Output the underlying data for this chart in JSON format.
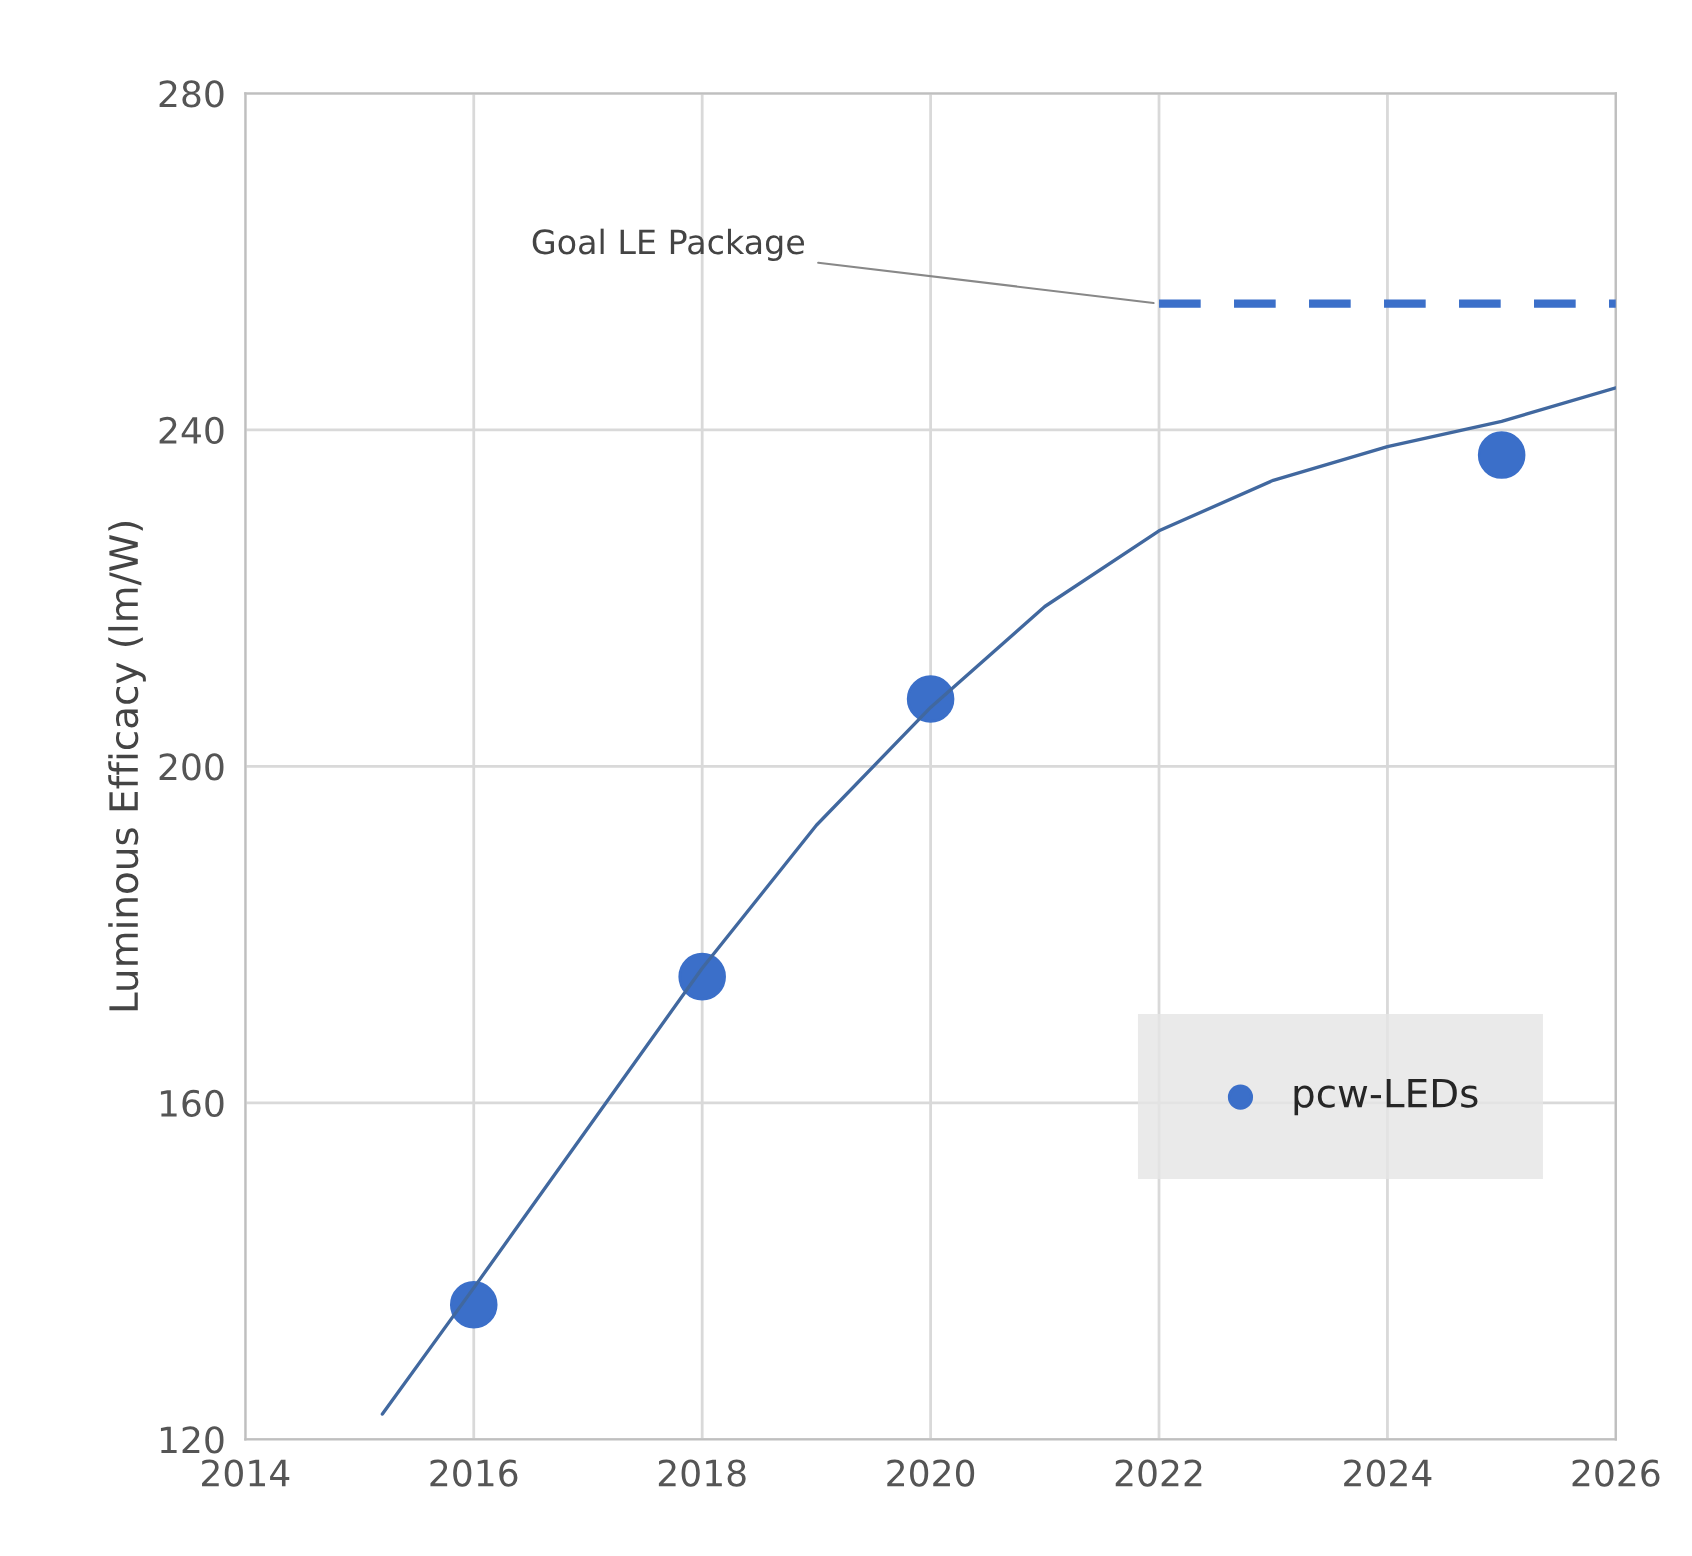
{
  "chart_data": {
    "type": "scatter",
    "ylabel": "Luminous Efficacy (lm/W)",
    "xlim": [
      2014,
      2026
    ],
    "xticks": [
      2014,
      2016,
      2018,
      2020,
      2022,
      2024,
      2026
    ],
    "ylim": [
      120,
      280
    ],
    "yticks": [
      120,
      160,
      200,
      240,
      280
    ],
    "grid": true,
    "legend": "bottom right",
    "annotations": [
      {
        "text": "Goal LE Package",
        "x": 2022,
        "y": 255
      }
    ],
    "series": [
      {
        "name": "pcw-LEDs",
        "marker": "circle",
        "color": "#3b6fc9",
        "x": [
          2016,
          2018,
          2020,
          2025
        ],
        "values": [
          136,
          175,
          208,
          237
        ]
      },
      {
        "type": "line",
        "marker": "none",
        "line_style": "solid",
        "color": "#41689f",
        "x": [
          2015.2,
          2016,
          2017,
          2018,
          2019,
          2020,
          2021,
          2022,
          2023,
          2024,
          2025,
          2026
        ],
        "values": [
          123,
          138,
          157,
          176,
          193,
          207,
          219,
          228,
          234,
          238,
          241,
          245
        ]
      },
      {
        "type": "line",
        "marker": "none",
        "line_style": "dashed",
        "color": "#3b6fc9",
        "x": [
          2022,
          2026
        ],
        "values": [
          255,
          255
        ]
      }
    ]
  }
}
